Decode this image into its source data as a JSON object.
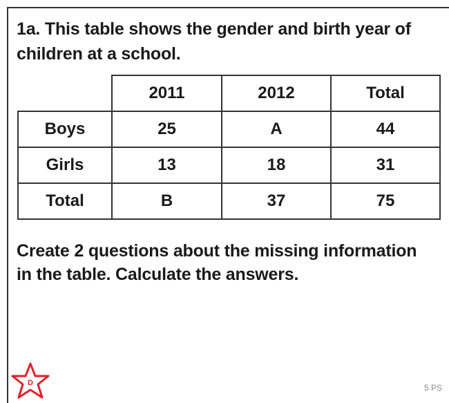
{
  "header": {
    "title": "1a. This table shows the gender and birth year of children at a school."
  },
  "table": {
    "columns": [
      "2011",
      "2012",
      "Total"
    ],
    "rows": [
      {
        "label": "Boys",
        "cells": [
          "25",
          "A",
          "44"
        ]
      },
      {
        "label": "Girls",
        "cells": [
          "13",
          "18",
          "31"
        ]
      },
      {
        "label": "Total",
        "cells": [
          "B",
          "37",
          "75"
        ]
      }
    ]
  },
  "question": "Create 2 questions about the missing information in the table. Calculate the answers.",
  "badge": "D",
  "footer": "5 PS"
}
